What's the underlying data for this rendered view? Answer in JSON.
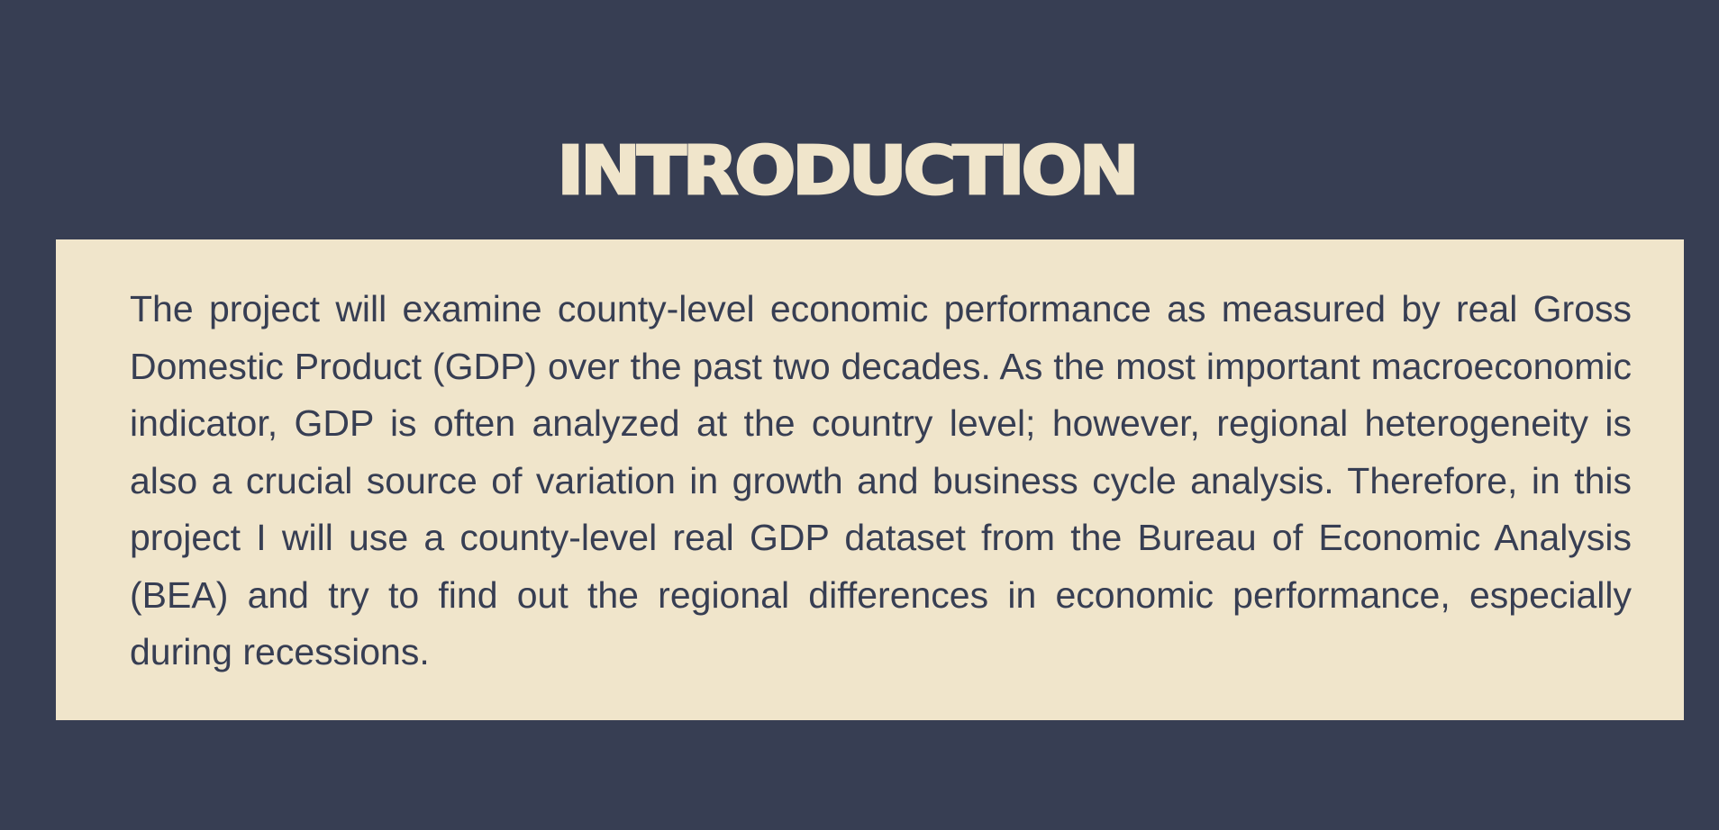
{
  "slide": {
    "title": "INTRODUCTION",
    "body": "The project will examine county-level economic performance as measured by real Gross Domestic Product (GDP) over the past two decades. As the most important macroeconomic indicator, GDP is often analyzed at the country level; however, regional heterogeneity is also a crucial source of variation in growth and business cycle analysis. Therefore, in this project I will use a county-level real GDP dataset from the Bureau of Economic Analysis (BEA) and try to find out the regional differences in economic performance, especially during recessions."
  },
  "colors": {
    "background": "#373e53",
    "panel": "#f0e5cb",
    "title_text": "#f0e5cb",
    "body_text": "#373e53"
  }
}
